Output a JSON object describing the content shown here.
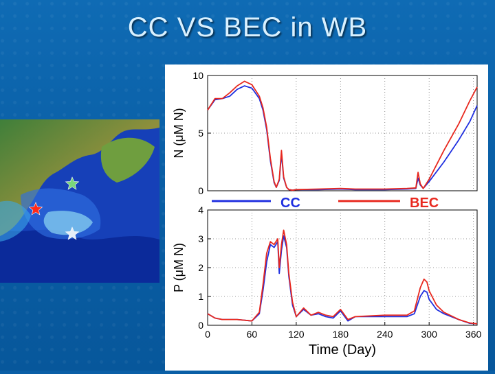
{
  "title": "CC VS BEC in WB",
  "colors": {
    "cc": "#1f2fe0",
    "bec": "#e8281e"
  },
  "legend": {
    "cc_label": "CC",
    "bec_label": "BEC"
  },
  "map": {
    "markers": [
      {
        "name": "green-star",
        "color": "#7bd67a"
      },
      {
        "name": "red-star",
        "color": "#ff2a1a"
      },
      {
        "name": "white-star",
        "color": "#e6eef7"
      }
    ]
  },
  "chart_data": [
    {
      "type": "line",
      "ylabel": "N (μM N)",
      "xlim": [
        0,
        365
      ],
      "ylim": [
        0,
        10
      ],
      "yticks": [
        "0",
        "5",
        "10"
      ],
      "grid": true,
      "series": [
        {
          "name": "CC",
          "x": [
            0,
            10,
            20,
            30,
            40,
            50,
            60,
            70,
            75,
            80,
            85,
            90,
            93,
            97,
            100,
            103,
            107,
            110,
            115,
            120,
            150,
            180,
            200,
            240,
            270,
            282,
            285,
            288,
            292,
            300,
            320,
            340,
            355,
            365
          ],
          "y": [
            7.0,
            7.9,
            8.0,
            8.2,
            8.8,
            9.1,
            8.9,
            8.0,
            7.0,
            5.3,
            2.6,
            0.7,
            0.3,
            0.9,
            3.2,
            1.1,
            0.3,
            0.1,
            0.05,
            0.1,
            0.1,
            0.15,
            0.1,
            0.1,
            0.15,
            0.2,
            1.1,
            0.5,
            0.2,
            0.8,
            2.5,
            4.4,
            6.0,
            7.4
          ]
        },
        {
          "name": "BEC",
          "x": [
            0,
            10,
            20,
            30,
            40,
            50,
            60,
            70,
            75,
            80,
            85,
            90,
            93,
            97,
            100,
            103,
            107,
            110,
            115,
            120,
            150,
            180,
            200,
            240,
            270,
            282,
            285,
            288,
            292,
            300,
            320,
            340,
            355,
            365
          ],
          "y": [
            7.0,
            8.0,
            8.0,
            8.5,
            9.1,
            9.5,
            9.2,
            8.2,
            7.2,
            5.5,
            2.8,
            0.8,
            0.3,
            1.0,
            3.5,
            1.2,
            0.3,
            0.1,
            0.05,
            0.1,
            0.15,
            0.2,
            0.15,
            0.15,
            0.2,
            0.25,
            1.6,
            0.6,
            0.2,
            1.0,
            3.5,
            5.8,
            7.8,
            9.0
          ]
        }
      ]
    },
    {
      "type": "line",
      "ylabel": "P (μM N)",
      "xlabel": "Time (Day)",
      "xlim": [
        0,
        365
      ],
      "ylim": [
        0,
        4
      ],
      "xticks": [
        "0",
        "60",
        "120",
        "180",
        "240",
        "300",
        "360"
      ],
      "yticks": [
        "0",
        "1",
        "2",
        "3",
        "4"
      ],
      "grid": true,
      "series": [
        {
          "name": "CC",
          "x": [
            0,
            10,
            20,
            40,
            60,
            70,
            75,
            80,
            85,
            90,
            95,
            97,
            100,
            103,
            107,
            110,
            115,
            120,
            130,
            140,
            150,
            160,
            170,
            180,
            190,
            200,
            240,
            270,
            280,
            288,
            293,
            297,
            300,
            310,
            320,
            340,
            355,
            365
          ],
          "y": [
            0.4,
            0.25,
            0.2,
            0.2,
            0.15,
            0.4,
            1.2,
            2.2,
            2.8,
            2.7,
            2.9,
            1.8,
            2.6,
            3.1,
            2.7,
            1.7,
            0.7,
            0.3,
            0.55,
            0.35,
            0.4,
            0.3,
            0.25,
            0.5,
            0.15,
            0.3,
            0.3,
            0.3,
            0.4,
            1.0,
            1.2,
            1.15,
            0.9,
            0.55,
            0.4,
            0.2,
            0.07,
            0.05
          ]
        },
        {
          "name": "BEC",
          "x": [
            0,
            10,
            20,
            40,
            60,
            70,
            75,
            80,
            85,
            90,
            95,
            97,
            100,
            103,
            107,
            110,
            115,
            120,
            130,
            140,
            150,
            160,
            170,
            180,
            190,
            200,
            240,
            270,
            280,
            288,
            293,
            297,
            300,
            310,
            320,
            340,
            355,
            365
          ],
          "y": [
            0.4,
            0.25,
            0.2,
            0.2,
            0.15,
            0.45,
            1.4,
            2.5,
            2.9,
            2.8,
            3.0,
            2.0,
            2.8,
            3.3,
            2.8,
            1.8,
            0.8,
            0.3,
            0.6,
            0.35,
            0.45,
            0.35,
            0.3,
            0.55,
            0.2,
            0.3,
            0.35,
            0.35,
            0.5,
            1.3,
            1.6,
            1.5,
            1.2,
            0.7,
            0.45,
            0.2,
            0.08,
            0.05
          ]
        }
      ]
    }
  ]
}
